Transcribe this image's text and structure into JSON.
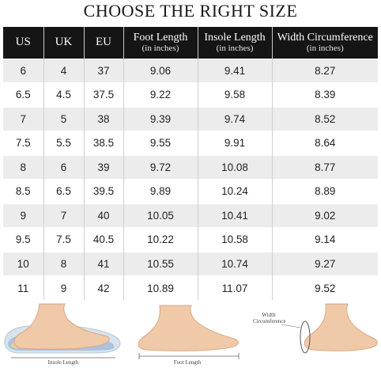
{
  "title": "CHOOSE THE RIGHT SIZE",
  "headers": [
    {
      "main": "US",
      "sub": ""
    },
    {
      "main": "UK",
      "sub": ""
    },
    {
      "main": "EU",
      "sub": ""
    },
    {
      "main": "Foot Length",
      "sub": "(in inches)"
    },
    {
      "main": "Insole Length",
      "sub": "(in inches)"
    },
    {
      "main": "Width Circumference",
      "sub": "(in inches)"
    }
  ],
  "rows": [
    [
      "6",
      "4",
      "37",
      "9.06",
      "9.41",
      "8.27"
    ],
    [
      "6.5",
      "4.5",
      "37.5",
      "9.22",
      "9.58",
      "8.39"
    ],
    [
      "7",
      "5",
      "38",
      "9.39",
      "9.74",
      "8.52"
    ],
    [
      "7.5",
      "5.5",
      "38.5",
      "9.55",
      "9.91",
      "8.64"
    ],
    [
      "8",
      "6",
      "39",
      "9.72",
      "10.08",
      "8.77"
    ],
    [
      "8.5",
      "6.5",
      "39.5",
      "9.89",
      "10.24",
      "8.89"
    ],
    [
      "9",
      "7",
      "40",
      "10.05",
      "10.41",
      "9.02"
    ],
    [
      "9.5",
      "7.5",
      "40.5",
      "10.22",
      "10.58",
      "9.14"
    ],
    [
      "10",
      "8",
      "41",
      "10.55",
      "10.74",
      "9.27"
    ],
    [
      "11",
      "9",
      "42",
      "10.89",
      "11.07",
      "9.52"
    ]
  ],
  "illustrations": {
    "insole_caption": "Insole Length",
    "foot_caption": "Foot Length",
    "width_caption_line1": "Width",
    "width_caption_line2": "Circumference"
  },
  "colors": {
    "header_bg": "#151515",
    "stripe": "#ececec",
    "skin": "#f0c9a8",
    "insole": "#a9c3e0"
  }
}
